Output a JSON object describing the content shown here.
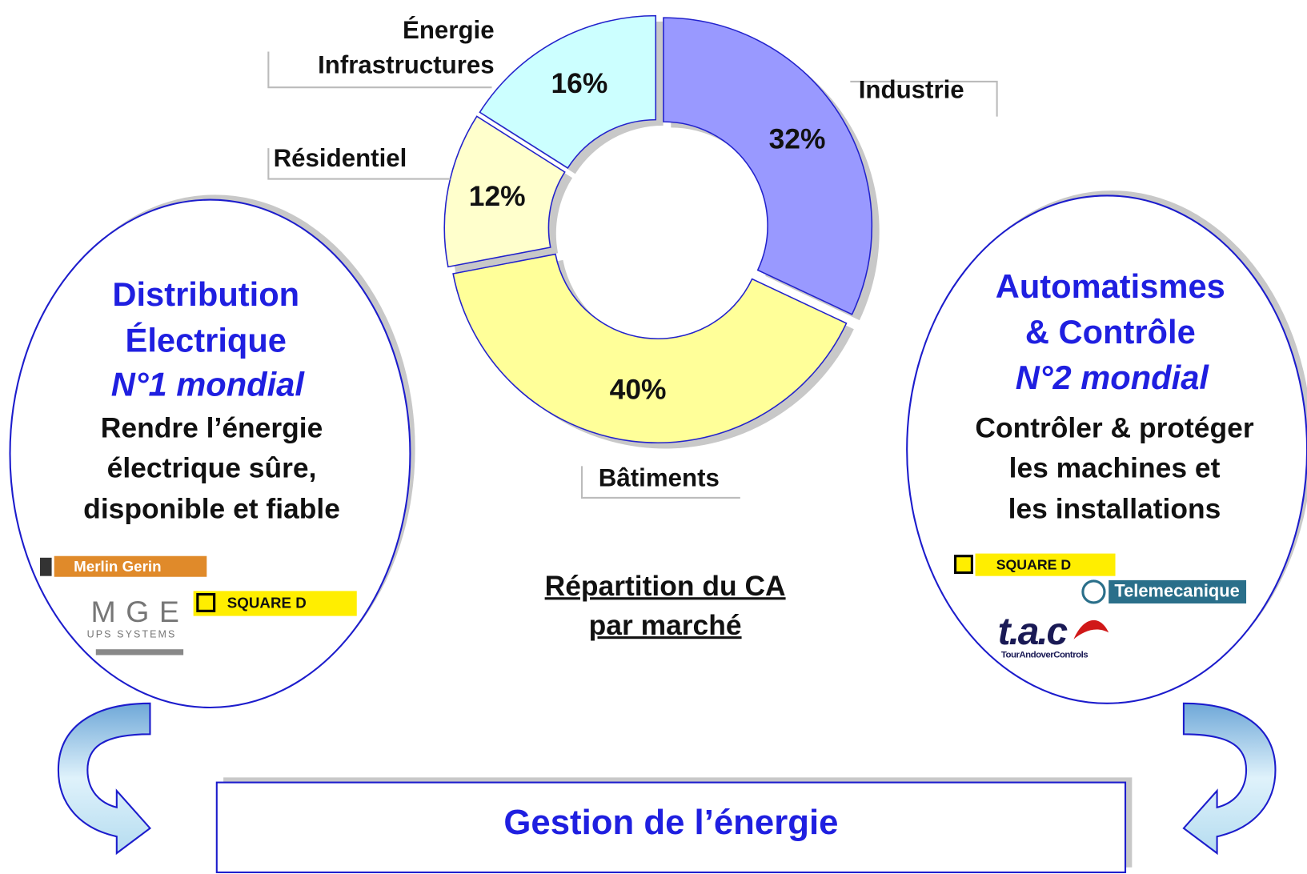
{
  "chart_data": {
    "type": "donut",
    "categories": [
      "Industrie",
      "Bâtiments",
      "Résidentiel",
      "Énergie Infrastructures"
    ],
    "values": [
      32,
      40,
      12,
      16
    ],
    "value_labels": [
      "32%",
      "40%",
      "12%",
      "16%"
    ],
    "colors": [
      "#9999ff",
      "#ffff99",
      "#ffffcc",
      "#ccffff"
    ]
  },
  "caption_lines": [
    "Répartition du CA",
    "par marché"
  ],
  "left": {
    "title_lines": [
      "Distribution",
      "Électrique"
    ],
    "rank": "N°1 mondial",
    "description_lines": [
      "Rendre l’énergie",
      "électrique sûre,",
      "disponible et fiable"
    ],
    "logos": {
      "merlin": "Merlin Gerin",
      "mge": "MGE",
      "mge_sub": "UPS SYSTEMS",
      "square_d": "SQUARE D"
    }
  },
  "right": {
    "title_lines": [
      "Automatismes",
      "& Contrôle"
    ],
    "rank": "N°2 mondial",
    "description_lines": [
      "Contrôler & protéger",
      "les machines et",
      "les installations"
    ],
    "logos": {
      "square_d": "SQUARE D",
      "telemecanique": "Telemecanique",
      "tac": "t.a.c",
      "tac_sub": "TourAndoverControls"
    }
  },
  "footer": "Gestion de l’énergie"
}
